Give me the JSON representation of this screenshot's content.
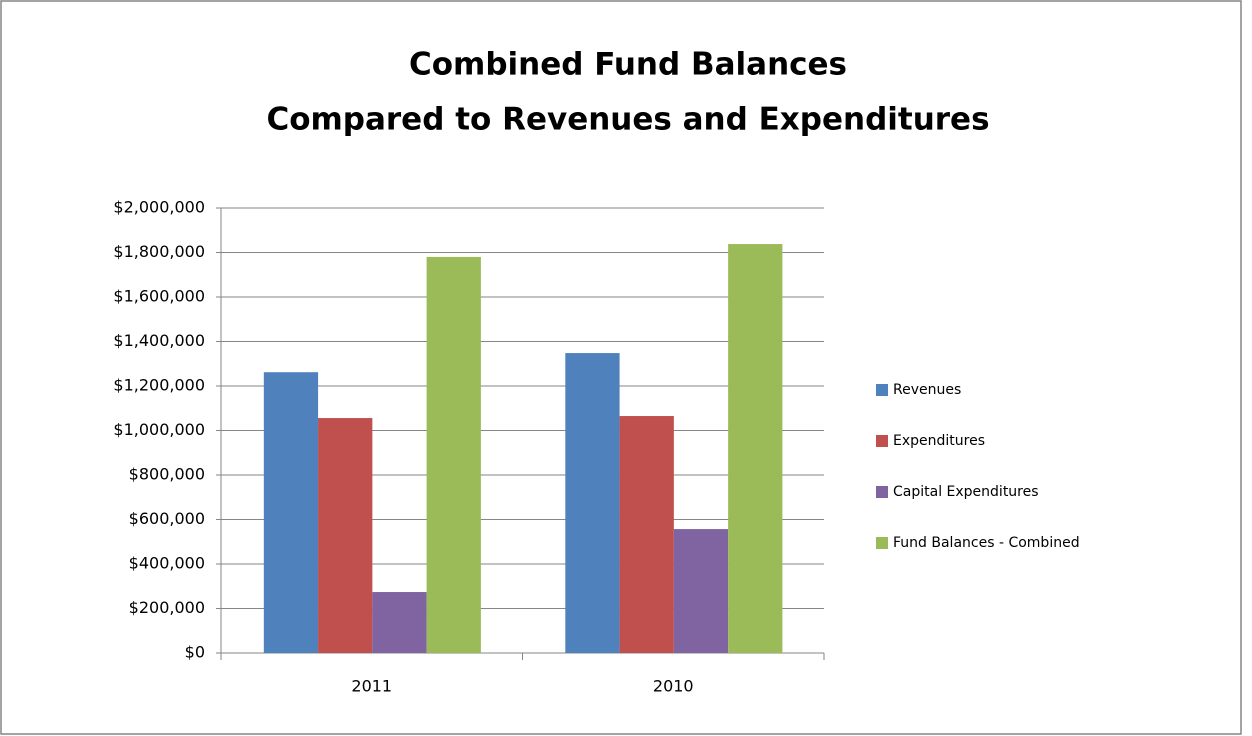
{
  "chart_data": {
    "type": "bar",
    "title": [
      "Combined Fund Balances",
      "Compared to Revenues and Expenditures"
    ],
    "categories": [
      "2011",
      "2010"
    ],
    "series": [
      {
        "name": "Revenues",
        "color": "#4f81bd",
        "values": [
          1262000,
          1348000
        ]
      },
      {
        "name": "Expenditures",
        "color": "#c0504d",
        "values": [
          1056000,
          1065000
        ]
      },
      {
        "name": "Capital Expenditures",
        "color": "#8064a2",
        "values": [
          274000,
          557000
        ]
      },
      {
        "name": "Fund Balances - Combined",
        "color": "#9bbb59",
        "values": [
          1780000,
          1838000
        ]
      }
    ],
    "ylim": [
      0,
      2000000
    ],
    "yticks": [
      {
        "value": 0,
        "label": "$0"
      },
      {
        "value": 200000,
        "label": "$200,000"
      },
      {
        "value": 400000,
        "label": "$400,000"
      },
      {
        "value": 600000,
        "label": "$600,000"
      },
      {
        "value": 800000,
        "label": "$800,000"
      },
      {
        "value": 1000000,
        "label": "$1,000,000"
      },
      {
        "value": 1200000,
        "label": "$1,200,000"
      },
      {
        "value": 1400000,
        "label": "$1,400,000"
      },
      {
        "value": 1600000,
        "label": "$1,600,000"
      },
      {
        "value": 1800000,
        "label": "$1,800,000"
      },
      {
        "value": 2000000,
        "label": "$2,000,000"
      }
    ],
    "grid": true,
    "legend": "right"
  }
}
